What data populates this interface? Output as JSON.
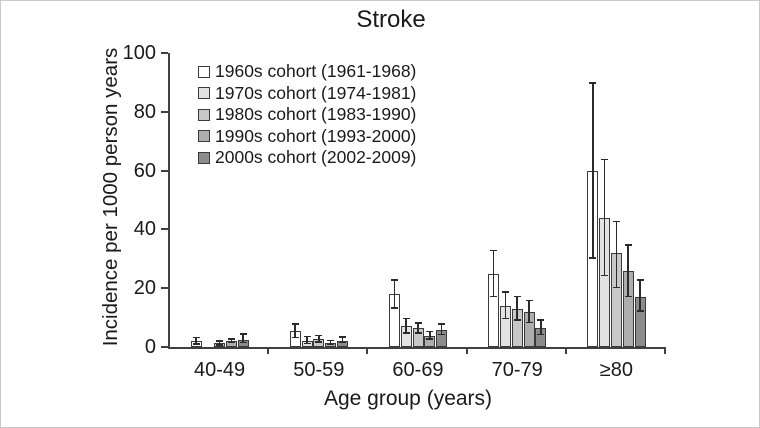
{
  "chart_data": {
    "type": "bar",
    "title": "Stroke",
    "xlabel": "Age group (years)",
    "ylabel": "Incidence per 1000 person years",
    "categories": [
      "40-49",
      "50-59",
      "60-69",
      "70-79",
      "≥80"
    ],
    "ylim": [
      0,
      100
    ],
    "yticks": [
      0,
      20,
      40,
      60,
      80,
      100
    ],
    "grid": false,
    "legend_position": "top-left-inside",
    "axis_color": "#404040",
    "bar_outline_color": "#3a3a3a",
    "error_bar_color": "#2b2b2b",
    "series": [
      {
        "name": "1960s cohort (1961-1968)",
        "color": "#ffffff",
        "values": [
          2.0,
          5.5,
          18.0,
          25.0,
          60.0
        ],
        "error_low": [
          0.8,
          3.0,
          13.0,
          17.0,
          30.0
        ],
        "error_high": [
          3.5,
          8.0,
          23.0,
          33.0,
          90.0
        ]
      },
      {
        "name": "1970s cohort (1974-1981)",
        "color": "#e2e2e2",
        "values": [
          0,
          2.2,
          7.0,
          14.0,
          44.0
        ],
        "error_low": [
          0,
          1.0,
          4.5,
          9.5,
          24.0
        ],
        "error_high": [
          0,
          3.8,
          10.0,
          19.0,
          64.0
        ]
      },
      {
        "name": "1980s cohort (1983-1990)",
        "color": "#c8c8c8",
        "values": [
          1.2,
          2.6,
          6.3,
          13.0,
          32.0
        ],
        "error_low": [
          0.5,
          1.4,
          4.5,
          9.0,
          20.0
        ],
        "error_high": [
          2.3,
          4.1,
          8.5,
          17.5,
          43.0
        ]
      },
      {
        "name": "1990s cohort (1993-2000)",
        "color": "#adadad",
        "values": [
          2.0,
          1.3,
          3.8,
          12.0,
          26.0
        ],
        "error_low": [
          1.2,
          0.6,
          2.5,
          8.0,
          17.0
        ],
        "error_high": [
          3.0,
          2.4,
          5.5,
          16.0,
          35.0
        ]
      },
      {
        "name": "2000s cohort (2002-2009)",
        "color": "#8c8c8c",
        "values": [
          2.4,
          2.2,
          5.7,
          6.5,
          17.0
        ],
        "error_low": [
          1.2,
          1.2,
          4.0,
          4.0,
          12.0
        ],
        "error_high": [
          4.6,
          3.6,
          8.0,
          9.5,
          23.0
        ]
      }
    ]
  }
}
